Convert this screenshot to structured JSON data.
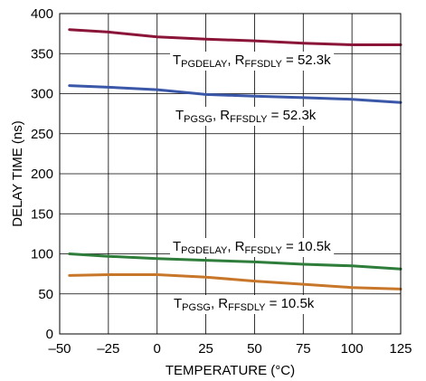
{
  "chart_data": {
    "type": "line",
    "title": "",
    "xlabel": "TEMPERATURE (°C)",
    "ylabel": "DELAY TIME (ns)",
    "xlim": [
      -50,
      125
    ],
    "ylim": [
      0,
      400
    ],
    "xticks": [
      -50,
      -25,
      0,
      25,
      50,
      75,
      100,
      125
    ],
    "yticks": [
      0,
      50,
      100,
      150,
      200,
      250,
      300,
      350,
      400
    ],
    "xtick_labels": [
      "–50",
      "–25",
      "0",
      "25",
      "50",
      "75",
      "100",
      "125"
    ],
    "ytick_labels": [
      "0",
      "50",
      "100",
      "150",
      "200",
      "250",
      "300",
      "350",
      "400"
    ],
    "grid": true,
    "legend": "none",
    "series": [
      {
        "color": "#8b1538",
        "label": {
          "main": "T",
          "sub": "PGDELAY",
          "mid": ", R",
          "sub2": "FFSDLY",
          "tail": " = 52.3k"
        },
        "points": [
          [
            -45,
            380
          ],
          [
            -25,
            377
          ],
          [
            0,
            371
          ],
          [
            25,
            368
          ],
          [
            50,
            366
          ],
          [
            75,
            363
          ],
          [
            100,
            361
          ],
          [
            125,
            361
          ]
        ]
      },
      {
        "color": "#3a57a8",
        "label": {
          "main": "T",
          "sub": "PGSG",
          "mid": ", R",
          "sub2": "FFSDLY",
          "tail": " = 52.3k"
        },
        "points": [
          [
            -45,
            310
          ],
          [
            -25,
            308
          ],
          [
            0,
            305
          ],
          [
            25,
            299
          ],
          [
            50,
            297
          ],
          [
            75,
            295
          ],
          [
            100,
            293
          ],
          [
            125,
            289
          ]
        ]
      },
      {
        "color": "#2e7d3a",
        "label": {
          "main": "T",
          "sub": "PGDELAY",
          "mid": ", R",
          "sub2": "FFSDLY",
          "tail": " = 10.5k"
        },
        "points": [
          [
            -45,
            100
          ],
          [
            -25,
            97
          ],
          [
            0,
            94
          ],
          [
            25,
            92
          ],
          [
            50,
            90
          ],
          [
            75,
            87
          ],
          [
            100,
            85
          ],
          [
            125,
            81
          ]
        ]
      },
      {
        "color": "#c8772a",
        "label": {
          "main": "T",
          "sub": "PGSG",
          "mid": ", R",
          "sub2": "FFSDLY",
          "tail": " = 10.5k"
        },
        "points": [
          [
            -45,
            73
          ],
          [
            -25,
            74
          ],
          [
            0,
            74
          ],
          [
            25,
            71
          ],
          [
            50,
            66
          ],
          [
            75,
            62
          ],
          [
            100,
            58
          ],
          [
            125,
            56
          ]
        ]
      }
    ]
  }
}
